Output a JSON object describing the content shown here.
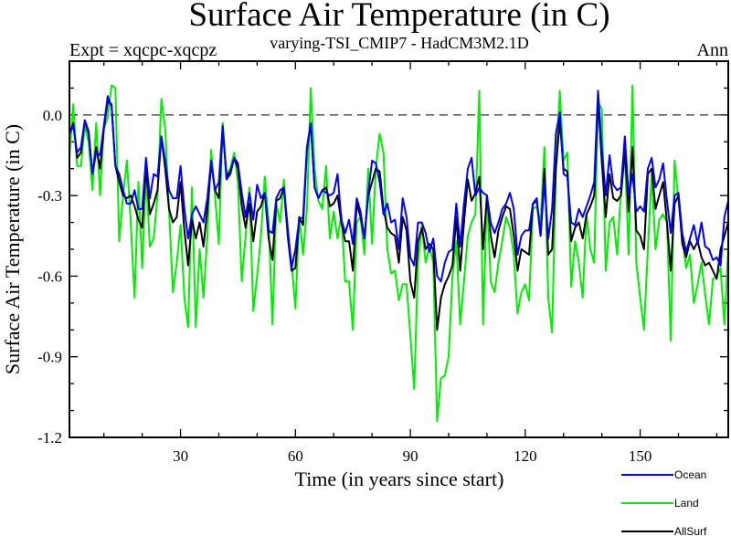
{
  "chart_data": {
    "type": "line",
    "title": "Surface Air Temperature (in C)",
    "subtitle_left": "Expt = xqcpc-xqcpz",
    "subtitle_center": "varying-TSI_CMIP7 - HadCM3M2.1D",
    "subtitle_right": "Ann",
    "xlabel": "Time (in years since start)",
    "ylabel": "Surface Air Temperature (in C)",
    "xlim": [
      1,
      173
    ],
    "ylim": [
      -1.2,
      0.2
    ],
    "x_ticks": [
      30,
      60,
      90,
      120,
      150
    ],
    "x_tick_labels": [
      "30",
      "60",
      "90",
      "120",
      "150"
    ],
    "y_ticks": [
      0.0,
      -0.3,
      -0.6,
      -0.9,
      -1.2
    ],
    "y_tick_labels": [
      "0.0",
      "-0.3",
      "-0.6",
      "-0.9",
      "-1.2"
    ],
    "reference_line": 0.0,
    "grid": false,
    "legend_position": "bottom-right",
    "x_start": 1,
    "x_step": 1,
    "series": [
      {
        "name": "Ocean",
        "color": "#0000ff",
        "values": [
          -0.07,
          -0.04,
          -0.14,
          -0.12,
          -0.02,
          -0.06,
          -0.22,
          -0.14,
          -0.15,
          -0.04,
          0.07,
          0.03,
          -0.19,
          -0.22,
          -0.28,
          -0.33,
          -0.33,
          -0.28,
          -0.35,
          -0.35,
          -0.16,
          -0.31,
          -0.22,
          -0.23,
          -0.08,
          -0.17,
          -0.28,
          -0.31,
          -0.31,
          -0.19,
          -0.35,
          -0.46,
          -0.37,
          -0.34,
          -0.37,
          -0.4,
          -0.31,
          -0.17,
          -0.28,
          -0.25,
          -0.04,
          -0.24,
          -0.22,
          -0.16,
          -0.18,
          -0.29,
          -0.38,
          -0.29,
          -0.39,
          -0.26,
          -0.31,
          -0.29,
          -0.43,
          -0.44,
          -0.31,
          -0.28,
          -0.27,
          -0.42,
          -0.57,
          -0.5,
          -0.39,
          -0.38,
          -0.12,
          -0.03,
          -0.27,
          -0.31,
          -0.28,
          -0.29,
          -0.3,
          -0.29,
          -0.22,
          -0.39,
          -0.44,
          -0.39,
          -0.48,
          -0.31,
          -0.36,
          -0.46,
          -0.29,
          -0.17,
          -0.18,
          -0.25,
          -0.37,
          -0.33,
          -0.4,
          -0.39,
          -0.5,
          -0.31,
          -0.38,
          -0.53,
          -0.56,
          -0.4,
          -0.4,
          -0.44,
          -0.51,
          -0.46,
          -0.6,
          -0.62,
          -0.55,
          -0.51,
          -0.5,
          -0.33,
          -0.49,
          -0.33,
          -0.2,
          -0.16,
          -0.3,
          -0.27,
          -0.29,
          -0.3,
          -0.4,
          -0.44,
          -0.4,
          -0.35,
          -0.33,
          -0.29,
          -0.35,
          -0.52,
          -0.45,
          -0.43,
          -0.43,
          -0.33,
          -0.31,
          -0.45,
          -0.25,
          -0.46,
          -0.35,
          -0.07,
          0.01,
          -0.22,
          -0.23,
          -0.4,
          -0.41,
          -0.35,
          -0.38,
          -0.34,
          -0.3,
          -0.25,
          0.09,
          -0.13,
          -0.3,
          -0.15,
          -0.26,
          -0.28,
          -0.27,
          -0.08,
          -0.3,
          -0.22,
          -0.36,
          -0.34,
          -0.36,
          -0.2,
          -0.16,
          -0.27,
          -0.24,
          -0.18,
          -0.32,
          -0.44,
          -0.3,
          -0.29,
          -0.44,
          -0.51,
          -0.46,
          -0.41,
          -0.48,
          -0.4,
          -0.49,
          -0.5,
          -0.54,
          -0.53,
          -0.56,
          -0.38,
          -0.32
        ]
      },
      {
        "name": "Land",
        "color": "#00ee00",
        "values": [
          -0.16,
          0.04,
          -0.19,
          -0.19,
          -0.04,
          -0.1,
          -0.28,
          -0.03,
          -0.3,
          -0.05,
          -0.01,
          0.11,
          0.1,
          -0.47,
          -0.3,
          -0.17,
          -0.4,
          -0.68,
          -0.25,
          -0.57,
          -0.22,
          -0.49,
          -0.46,
          -0.3,
          0.06,
          -0.05,
          -0.35,
          -0.66,
          -0.55,
          -0.41,
          -0.68,
          -0.79,
          -0.27,
          -0.79,
          -0.5,
          -0.68,
          -0.45,
          -0.13,
          -0.3,
          -0.48,
          -0.03,
          -0.22,
          -0.2,
          -0.14,
          -0.25,
          -0.62,
          -0.45,
          -0.27,
          -0.73,
          -0.6,
          -0.45,
          -0.23,
          -0.4,
          -0.78,
          -0.33,
          -0.4,
          -0.24,
          -0.45,
          -0.55,
          -0.72,
          -0.38,
          -0.52,
          -0.35,
          0.1,
          -0.2,
          -0.32,
          -0.35,
          -0.19,
          -0.46,
          -0.36,
          -0.46,
          -0.37,
          -0.62,
          -0.62,
          -0.8,
          -0.4,
          -0.38,
          -0.52,
          -0.2,
          -0.48,
          -0.2,
          -0.07,
          -0.14,
          -0.5,
          -0.59,
          -0.58,
          -0.69,
          -0.63,
          -0.63,
          -0.82,
          -1.02,
          -0.55,
          -0.41,
          -0.55,
          -0.49,
          -0.55,
          -1.14,
          -0.98,
          -0.97,
          -0.9,
          -0.6,
          -0.47,
          -0.78,
          -0.62,
          -0.45,
          -0.4,
          -0.37,
          0.09,
          -0.78,
          -0.3,
          -0.62,
          -0.66,
          -0.55,
          -0.47,
          -0.38,
          -0.42,
          -0.52,
          -0.74,
          -0.66,
          -0.63,
          -0.69,
          -0.35,
          -0.34,
          -0.4,
          -0.12,
          -0.68,
          -0.81,
          -0.2,
          0.09,
          -0.17,
          -0.14,
          -0.64,
          -0.47,
          -0.55,
          -0.68,
          -0.37,
          -0.5,
          -0.55,
          0.05,
          0.02,
          -0.58,
          -0.4,
          -0.38,
          -0.52,
          -0.28,
          -0.15,
          -0.52,
          0.11,
          -0.55,
          -0.68,
          -0.8,
          -0.5,
          -0.22,
          -0.5,
          -0.39,
          -0.37,
          -0.4,
          -0.84,
          -0.17,
          -0.32,
          -0.45,
          -0.57,
          -0.52,
          -0.7,
          -0.63,
          -0.55,
          -0.67,
          -0.78,
          -0.61,
          -0.6,
          -0.57,
          -0.78,
          -0.5
        ]
      },
      {
        "name": "AllSurf",
        "color": "#000000",
        "values": [
          -0.07,
          -0.03,
          -0.16,
          -0.14,
          -0.02,
          -0.07,
          -0.22,
          -0.12,
          -0.2,
          -0.05,
          0.05,
          0.04,
          -0.19,
          -0.25,
          -0.3,
          -0.31,
          -0.3,
          -0.34,
          -0.39,
          -0.42,
          -0.19,
          -0.37,
          -0.33,
          -0.28,
          -0.08,
          -0.2,
          -0.35,
          -0.4,
          -0.38,
          -0.25,
          -0.43,
          -0.56,
          -0.39,
          -0.46,
          -0.4,
          -0.49,
          -0.35,
          -0.18,
          -0.28,
          -0.31,
          -0.05,
          -0.23,
          -0.21,
          -0.16,
          -0.2,
          -0.34,
          -0.42,
          -0.33,
          -0.47,
          -0.36,
          -0.34,
          -0.29,
          -0.46,
          -0.54,
          -0.32,
          -0.31,
          -0.27,
          -0.45,
          -0.58,
          -0.57,
          -0.38,
          -0.41,
          -0.13,
          -0.03,
          -0.27,
          -0.31,
          -0.28,
          -0.27,
          -0.34,
          -0.33,
          -0.3,
          -0.4,
          -0.47,
          -0.47,
          -0.58,
          -0.33,
          -0.38,
          -0.46,
          -0.3,
          -0.25,
          -0.2,
          -0.21,
          -0.35,
          -0.42,
          -0.44,
          -0.45,
          -0.55,
          -0.38,
          -0.43,
          -0.62,
          -0.68,
          -0.47,
          -0.42,
          -0.5,
          -0.48,
          -0.5,
          -0.8,
          -0.68,
          -0.63,
          -0.6,
          -0.56,
          -0.38,
          -0.58,
          -0.4,
          -0.24,
          -0.32,
          -0.29,
          -0.23,
          -0.5,
          -0.3,
          -0.45,
          -0.53,
          -0.43,
          -0.38,
          -0.34,
          -0.35,
          -0.45,
          -0.58,
          -0.5,
          -0.51,
          -0.52,
          -0.33,
          -0.32,
          -0.45,
          -0.2,
          -0.52,
          -0.5,
          -0.2,
          -0.02,
          -0.2,
          -0.21,
          -0.47,
          -0.42,
          -0.4,
          -0.46,
          -0.37,
          -0.34,
          -0.3,
          0.06,
          -0.18,
          -0.38,
          -0.22,
          -0.31,
          -0.32,
          -0.3,
          -0.13,
          -0.36,
          -0.12,
          -0.43,
          -0.45,
          -0.5,
          -0.22,
          -0.2,
          -0.35,
          -0.3,
          -0.25,
          -0.4,
          -0.58,
          -0.33,
          -0.3,
          -0.48,
          -0.53,
          -0.47,
          -0.5,
          -0.47,
          -0.53,
          -0.56,
          -0.55,
          -0.58,
          -0.61,
          -0.5,
          -0.45,
          -0.4
        ]
      }
    ],
    "draw_order": [
      "Land",
      "AllSurf",
      "Ocean"
    ],
    "legend_order": [
      "Ocean",
      "Land",
      "AllSurf"
    ]
  }
}
